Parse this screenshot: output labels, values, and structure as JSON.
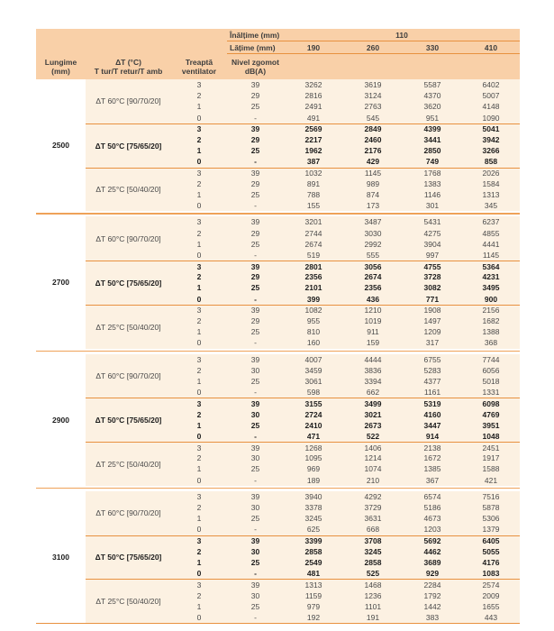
{
  "colors": {
    "header_background": "#f9d0a8",
    "row_background": "#fcf1e2",
    "separator_line": "#e8913f",
    "text": "#4a4a4a",
    "bold_text": "#1c1c1c"
  },
  "table": {
    "header": {
      "inaltime_label": "Înălțime (mm)",
      "inaltime_value": "110",
      "latime_label": "Lățime (mm)",
      "width_columns": [
        "190",
        "260",
        "330",
        "410"
      ],
      "col_lungime_line1": "Lungime",
      "col_lungime_line2": "(mm)",
      "col_dt_line1": "ΔT (°C)",
      "col_dt_line2": "T tur/T retur/T amb",
      "col_treapta_line1": "Treaptă",
      "col_treapta_line2": "ventilator",
      "col_zgomot_line1": "Nivel zgomot",
      "col_zgomot_line2": "dB(A)"
    },
    "groups": [
      {
        "length": "2500",
        "blocks": [
          {
            "label": "ΔT 60°C [90/70/20]",
            "bold": false,
            "rows": [
              {
                "treapta": "3",
                "noise": "39",
                "values": [
                  "3262",
                  "3619",
                  "5587",
                  "6402"
                ]
              },
              {
                "treapta": "2",
                "noise": "29",
                "values": [
                  "2816",
                  "3124",
                  "4370",
                  "5007"
                ]
              },
              {
                "treapta": "1",
                "noise": "25",
                "values": [
                  "2491",
                  "2763",
                  "3620",
                  "4148"
                ]
              },
              {
                "treapta": "0",
                "noise": "-",
                "values": [
                  "491",
                  "545",
                  "951",
                  "1090"
                ]
              }
            ]
          },
          {
            "label": "ΔT 50°C [75/65/20]",
            "bold": true,
            "rows": [
              {
                "treapta": "3",
                "noise": "39",
                "values": [
                  "2569",
                  "2849",
                  "4399",
                  "5041"
                ]
              },
              {
                "treapta": "2",
                "noise": "29",
                "values": [
                  "2217",
                  "2460",
                  "3441",
                  "3942"
                ]
              },
              {
                "treapta": "1",
                "noise": "25",
                "values": [
                  "1962",
                  "2176",
                  "2850",
                  "3266"
                ]
              },
              {
                "treapta": "0",
                "noise": "-",
                "values": [
                  "387",
                  "429",
                  "749",
                  "858"
                ]
              }
            ]
          },
          {
            "label": "ΔT 25°C [50/40/20]",
            "bold": false,
            "rows": [
              {
                "treapta": "3",
                "noise": "39",
                "values": [
                  "1032",
                  "1145",
                  "1768",
                  "2026"
                ]
              },
              {
                "treapta": "2",
                "noise": "29",
                "values": [
                  "891",
                  "989",
                  "1383",
                  "1584"
                ]
              },
              {
                "treapta": "1",
                "noise": "25",
                "values": [
                  "788",
                  "874",
                  "1146",
                  "1313"
                ]
              },
              {
                "treapta": "0",
                "noise": "-",
                "values": [
                  "155",
                  "173",
                  "301",
                  "345"
                ]
              }
            ]
          }
        ]
      },
      {
        "length": "2700",
        "blocks": [
          {
            "label": "ΔT 60°C [90/70/20]",
            "bold": false,
            "rows": [
              {
                "treapta": "3",
                "noise": "39",
                "values": [
                  "3201",
                  "3487",
                  "5431",
                  "6237"
                ]
              },
              {
                "treapta": "2",
                "noise": "29",
                "values": [
                  "2744",
                  "3030",
                  "4275",
                  "4855"
                ]
              },
              {
                "treapta": "1",
                "noise": "25",
                "values": [
                  "2674",
                  "2992",
                  "3904",
                  "4441"
                ]
              },
              {
                "treapta": "0",
                "noise": "-",
                "values": [
                  "519",
                  "555",
                  "997",
                  "1145"
                ]
              }
            ]
          },
          {
            "label": "ΔT 50°C [75/65/20]",
            "bold": true,
            "rows": [
              {
                "treapta": "3",
                "noise": "39",
                "values": [
                  "2801",
                  "3056",
                  "4755",
                  "5364"
                ]
              },
              {
                "treapta": "2",
                "noise": "29",
                "values": [
                  "2356",
                  "2674",
                  "3728",
                  "4231"
                ]
              },
              {
                "treapta": "1",
                "noise": "25",
                "values": [
                  "2101",
                  "2356",
                  "3082",
                  "3495"
                ]
              },
              {
                "treapta": "0",
                "noise": "-",
                "values": [
                  "399",
                  "436",
                  "771",
                  "900"
                ]
              }
            ]
          },
          {
            "label": "ΔT 25°C [50/40/20]",
            "bold": false,
            "rows": [
              {
                "treapta": "3",
                "noise": "39",
                "values": [
                  "1082",
                  "1210",
                  "1908",
                  "2156"
                ]
              },
              {
                "treapta": "2",
                "noise": "29",
                "values": [
                  "955",
                  "1019",
                  "1497",
                  "1682"
                ]
              },
              {
                "treapta": "1",
                "noise": "25",
                "values": [
                  "810",
                  "911",
                  "1209",
                  "1388"
                ]
              },
              {
                "treapta": "0",
                "noise": "-",
                "values": [
                  "160",
                  "159",
                  "317",
                  "368"
                ]
              }
            ]
          }
        ]
      },
      {
        "length": "2900",
        "blocks": [
          {
            "label": "ΔT 60°C [90/70/20]",
            "bold": false,
            "rows": [
              {
                "treapta": "3",
                "noise": "39",
                "values": [
                  "4007",
                  "4444",
                  "6755",
                  "7744"
                ]
              },
              {
                "treapta": "2",
                "noise": "30",
                "values": [
                  "3459",
                  "3836",
                  "5283",
                  "6056"
                ]
              },
              {
                "treapta": "1",
                "noise": "25",
                "values": [
                  "3061",
                  "3394",
                  "4377",
                  "5018"
                ]
              },
              {
                "treapta": "0",
                "noise": "-",
                "values": [
                  "598",
                  "662",
                  "1161",
                  "1331"
                ]
              }
            ]
          },
          {
            "label": "ΔT 50°C [75/65/20]",
            "bold": true,
            "rows": [
              {
                "treapta": "3",
                "noise": "39",
                "values": [
                  "3155",
                  "3499",
                  "5319",
                  "6098"
                ]
              },
              {
                "treapta": "2",
                "noise": "30",
                "values": [
                  "2724",
                  "3021",
                  "4160",
                  "4769"
                ]
              },
              {
                "treapta": "1",
                "noise": "25",
                "values": [
                  "2410",
                  "2673",
                  "3447",
                  "3951"
                ]
              },
              {
                "treapta": "0",
                "noise": "-",
                "values": [
                  "471",
                  "522",
                  "914",
                  "1048"
                ]
              }
            ]
          },
          {
            "label": "ΔT 25°C [50/40/20]",
            "bold": false,
            "rows": [
              {
                "treapta": "3",
                "noise": "39",
                "values": [
                  "1268",
                  "1406",
                  "2138",
                  "2451"
                ]
              },
              {
                "treapta": "2",
                "noise": "30",
                "values": [
                  "1095",
                  "1214",
                  "1672",
                  "1917"
                ]
              },
              {
                "treapta": "1",
                "noise": "25",
                "values": [
                  "969",
                  "1074",
                  "1385",
                  "1588"
                ]
              },
              {
                "treapta": "0",
                "noise": "-",
                "values": [
                  "189",
                  "210",
                  "367",
                  "421"
                ]
              }
            ]
          }
        ]
      },
      {
        "length": "3100",
        "blocks": [
          {
            "label": "ΔT 60°C [90/70/20]",
            "bold": false,
            "rows": [
              {
                "treapta": "3",
                "noise": "39",
                "values": [
                  "3940",
                  "4292",
                  "6574",
                  "7516"
                ]
              },
              {
                "treapta": "2",
                "noise": "30",
                "values": [
                  "3378",
                  "3729",
                  "5186",
                  "5878"
                ]
              },
              {
                "treapta": "1",
                "noise": "25",
                "values": [
                  "3245",
                  "3631",
                  "4673",
                  "5306"
                ]
              },
              {
                "treapta": "0",
                "noise": "-",
                "values": [
                  "625",
                  "668",
                  "1203",
                  "1379"
                ]
              }
            ]
          },
          {
            "label": "ΔT 50°C [75/65/20]",
            "bold": true,
            "rows": [
              {
                "treapta": "3",
                "noise": "39",
                "values": [
                  "3399",
                  "3708",
                  "5692",
                  "6405"
                ]
              },
              {
                "treapta": "2",
                "noise": "30",
                "values": [
                  "2858",
                  "3245",
                  "4462",
                  "5055"
                ]
              },
              {
                "treapta": "1",
                "noise": "25",
                "values": [
                  "2549",
                  "2858",
                  "3689",
                  "4176"
                ]
              },
              {
                "treapta": "0",
                "noise": "-",
                "values": [
                  "481",
                  "525",
                  "929",
                  "1083"
                ]
              }
            ]
          },
          {
            "label": "ΔT 25°C [50/40/20]",
            "bold": false,
            "rows": [
              {
                "treapta": "3",
                "noise": "39",
                "values": [
                  "1313",
                  "1468",
                  "2284",
                  "2574"
                ]
              },
              {
                "treapta": "2",
                "noise": "30",
                "values": [
                  "1159",
                  "1236",
                  "1792",
                  "2009"
                ]
              },
              {
                "treapta": "1",
                "noise": "25",
                "values": [
                  "979",
                  "1101",
                  "1442",
                  "1655"
                ]
              },
              {
                "treapta": "0",
                "noise": "-",
                "values": [
                  "192",
                  "191",
                  "383",
                  "443"
                ]
              }
            ]
          }
        ]
      }
    ]
  }
}
